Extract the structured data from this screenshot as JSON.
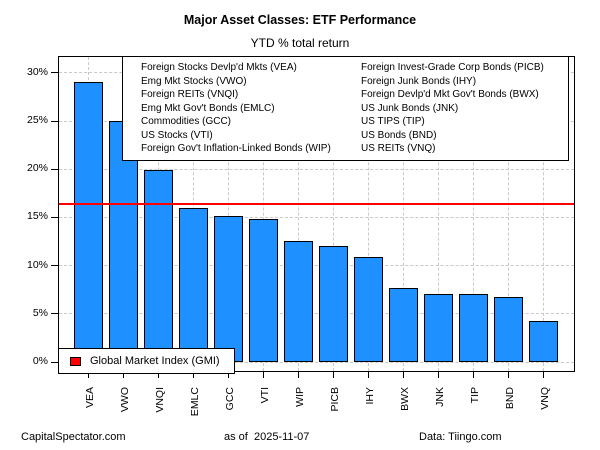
{
  "title": "Major Asset Classes: ETF Performance",
  "subtitle": "YTD % total return",
  "chart_data": {
    "type": "bar",
    "categories": [
      "VEA",
      "VWO",
      "VNQI",
      "EMLC",
      "GCC",
      "VTI",
      "WIP",
      "PICB",
      "IHY",
      "BWX",
      "JNK",
      "TIP",
      "BND",
      "VNQ"
    ],
    "values": [
      29.0,
      25.0,
      19.9,
      16.0,
      15.1,
      14.8,
      12.5,
      12.0,
      10.9,
      7.7,
      7.1,
      7.1,
      6.7,
      4.3
    ],
    "bar_color": "#1E90FF",
    "bar_border_color": "#000000",
    "y_ticks": [
      0,
      5,
      10,
      15,
      20,
      25,
      30
    ],
    "y_tick_labels": [
      "0%",
      "5%",
      "10%",
      "15%",
      "20%",
      "25%",
      "30%"
    ],
    "ylim": [
      0,
      31.6
    ],
    "grid": "dashed both axes",
    "grid_color": "#c9c9c9",
    "reference_line": {
      "label": "Global Market Index (GMI)",
      "value": 16.3,
      "color": "#FF0000"
    },
    "legend_left_column": [
      "Foreign Stocks Devlp'd Mkts (VEA)",
      "Emg Mkt Stocks (VWO)",
      "Foreign REITs (VNQI)",
      "Emg Mkt Gov't Bonds (EMLC)",
      "Commodities (GCC)",
      "US Stocks (VTI)",
      "Foreign Gov't Inflation-Linked Bonds (WIP)"
    ],
    "legend_right_column": [
      "Foreign Invest-Grade Corp Bonds (PICB)",
      "Foreign Junk Bonds (IHY)",
      "Foreign Devlp'd Mkt Gov't Bonds (BWX)",
      "US Junk Bonds (JNK)",
      "US TIPS (TIP)",
      "US Bonds (BND)",
      "US REITs (VNQ)"
    ],
    "legend_position": "top inside plot"
  },
  "footer": {
    "left": "CapitalSpectator.com",
    "center": "as of  2025-11-07",
    "right": "Data: Tiingo.com"
  }
}
